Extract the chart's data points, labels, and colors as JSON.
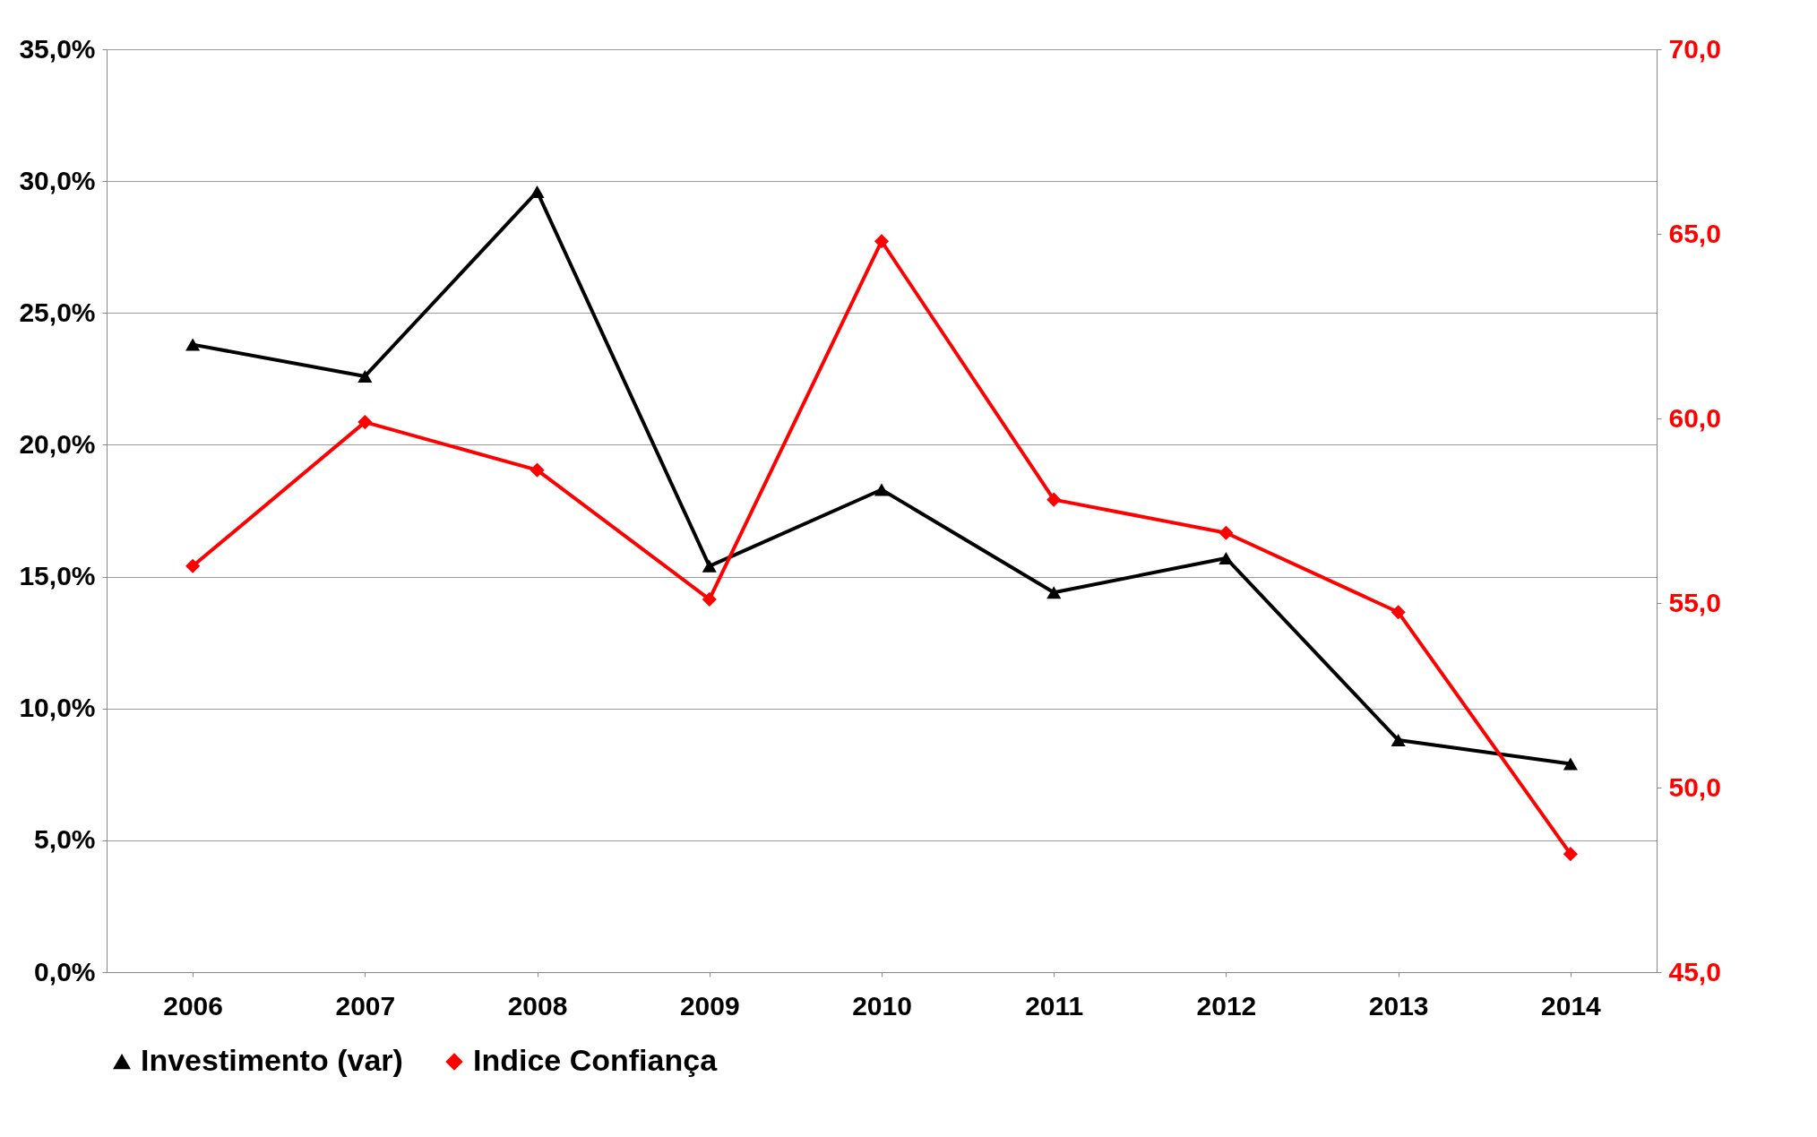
{
  "chart_data": {
    "type": "line",
    "categories": [
      "2006",
      "2007",
      "2008",
      "2009",
      "2010",
      "2011",
      "2012",
      "2013",
      "2014"
    ],
    "series": [
      {
        "name": "Investimento (var)",
        "color": "#000000",
        "marker": "triangle",
        "values": [
          23.8,
          22.6,
          29.6,
          15.4,
          18.3,
          14.4,
          15.7,
          8.8,
          7.9
        ]
      },
      {
        "name": "Indice Confiança",
        "color": "#ff0000",
        "marker": "diamond",
        "axis": "y2",
        "values": [
          56.0,
          59.9,
          58.6,
          55.1,
          64.8,
          57.8,
          56.9,
          54.75,
          48.2
        ]
      }
    ],
    "ylim": [
      0,
      35
    ],
    "yticks": [
      {
        "value": 0,
        "label": "0,0%"
      },
      {
        "value": 5,
        "label": "5,0%"
      },
      {
        "value": 10,
        "label": "10,0%"
      },
      {
        "value": 15,
        "label": "15,0%"
      },
      {
        "value": 20,
        "label": "20,0%"
      },
      {
        "value": 25,
        "label": "25,0%"
      },
      {
        "value": 30,
        "label": "30,0%"
      },
      {
        "value": 35,
        "label": "35,0%"
      }
    ],
    "y2lim": [
      45,
      70
    ],
    "y2ticks": [
      {
        "value": 45,
        "label": "45,0"
      },
      {
        "value": 50,
        "label": "50,0"
      },
      {
        "value": 55,
        "label": "55,0"
      },
      {
        "value": 60,
        "label": "60,0"
      },
      {
        "value": 65,
        "label": "65,0"
      },
      {
        "value": 70,
        "label": "70,0"
      }
    ],
    "grid": "y",
    "legend": "bottom",
    "line_style": "solid"
  }
}
